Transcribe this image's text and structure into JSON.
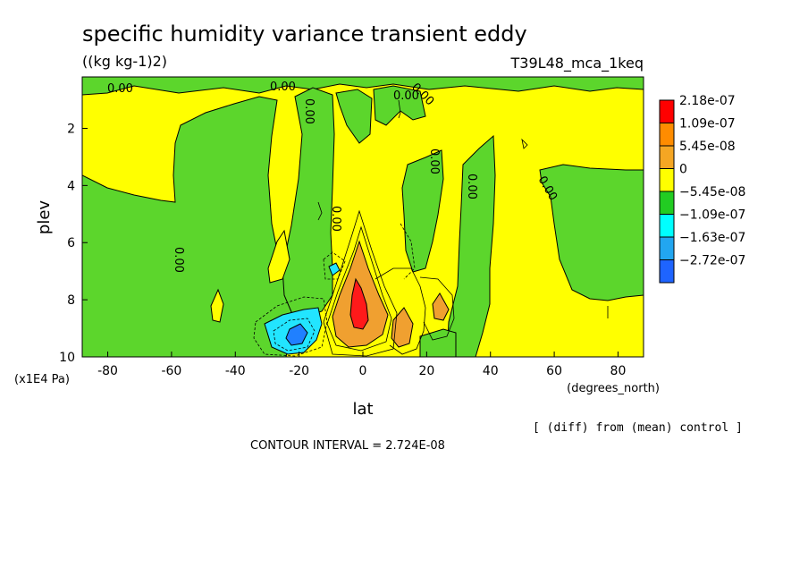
{
  "chart_data": {
    "type": "heatmap",
    "title": "specific humidity variance transient eddy",
    "units": "((kg kg-1)2)",
    "experiment": "T39L48_mca_1keq",
    "xlabel": "lat",
    "xunit": "(degrees_north)",
    "ylabel": "plev",
    "yunit": "(x1E4 Pa)",
    "note": "[ (diff) from (mean) control ]",
    "contour_interval": "CONTOUR INTERVAL = 2.724E-08",
    "x_ticks": [
      "-80",
      "-60",
      "-40",
      "-20",
      "0",
      "20",
      "40",
      "60",
      "80"
    ],
    "y_ticks": [
      "2",
      "4",
      "6",
      "8",
      "10"
    ],
    "xlim": [
      -88,
      88
    ],
    "ylim": [
      10,
      0.2
    ],
    "y_reversed": true,
    "contour_labels": [
      "0.00",
      "0.00",
      "0.00",
      "0.00",
      "0.00",
      "0.00",
      "0.00",
      "0.00",
      "0.00",
      "0.00"
    ],
    "colorbar": [
      {
        "label": "2.18e-07",
        "color": "#ff0000"
      },
      {
        "label": "1.09e-07",
        "color": "#ff8c00"
      },
      {
        "label": "5.45e-08",
        "color": "#f5a623"
      },
      {
        "label": "0",
        "color": "#ffff00"
      },
      {
        "label": "−5.45e-08",
        "color": "#22cc22"
      },
      {
        "label": "−1.09e-07",
        "color": "#00ffff"
      },
      {
        "label": "−1.63e-07",
        "color": "#22a6f0"
      },
      {
        "label": "−2.72e-07",
        "color": "#1e64ff"
      }
    ],
    "colors": {
      "positive_band": "#ffff00",
      "negative_band": "#5cd62c",
      "orange": "#f0a030",
      "red": "#ff1a1a",
      "cyan": "#22e5ff",
      "blue": "#2080ff"
    }
  }
}
